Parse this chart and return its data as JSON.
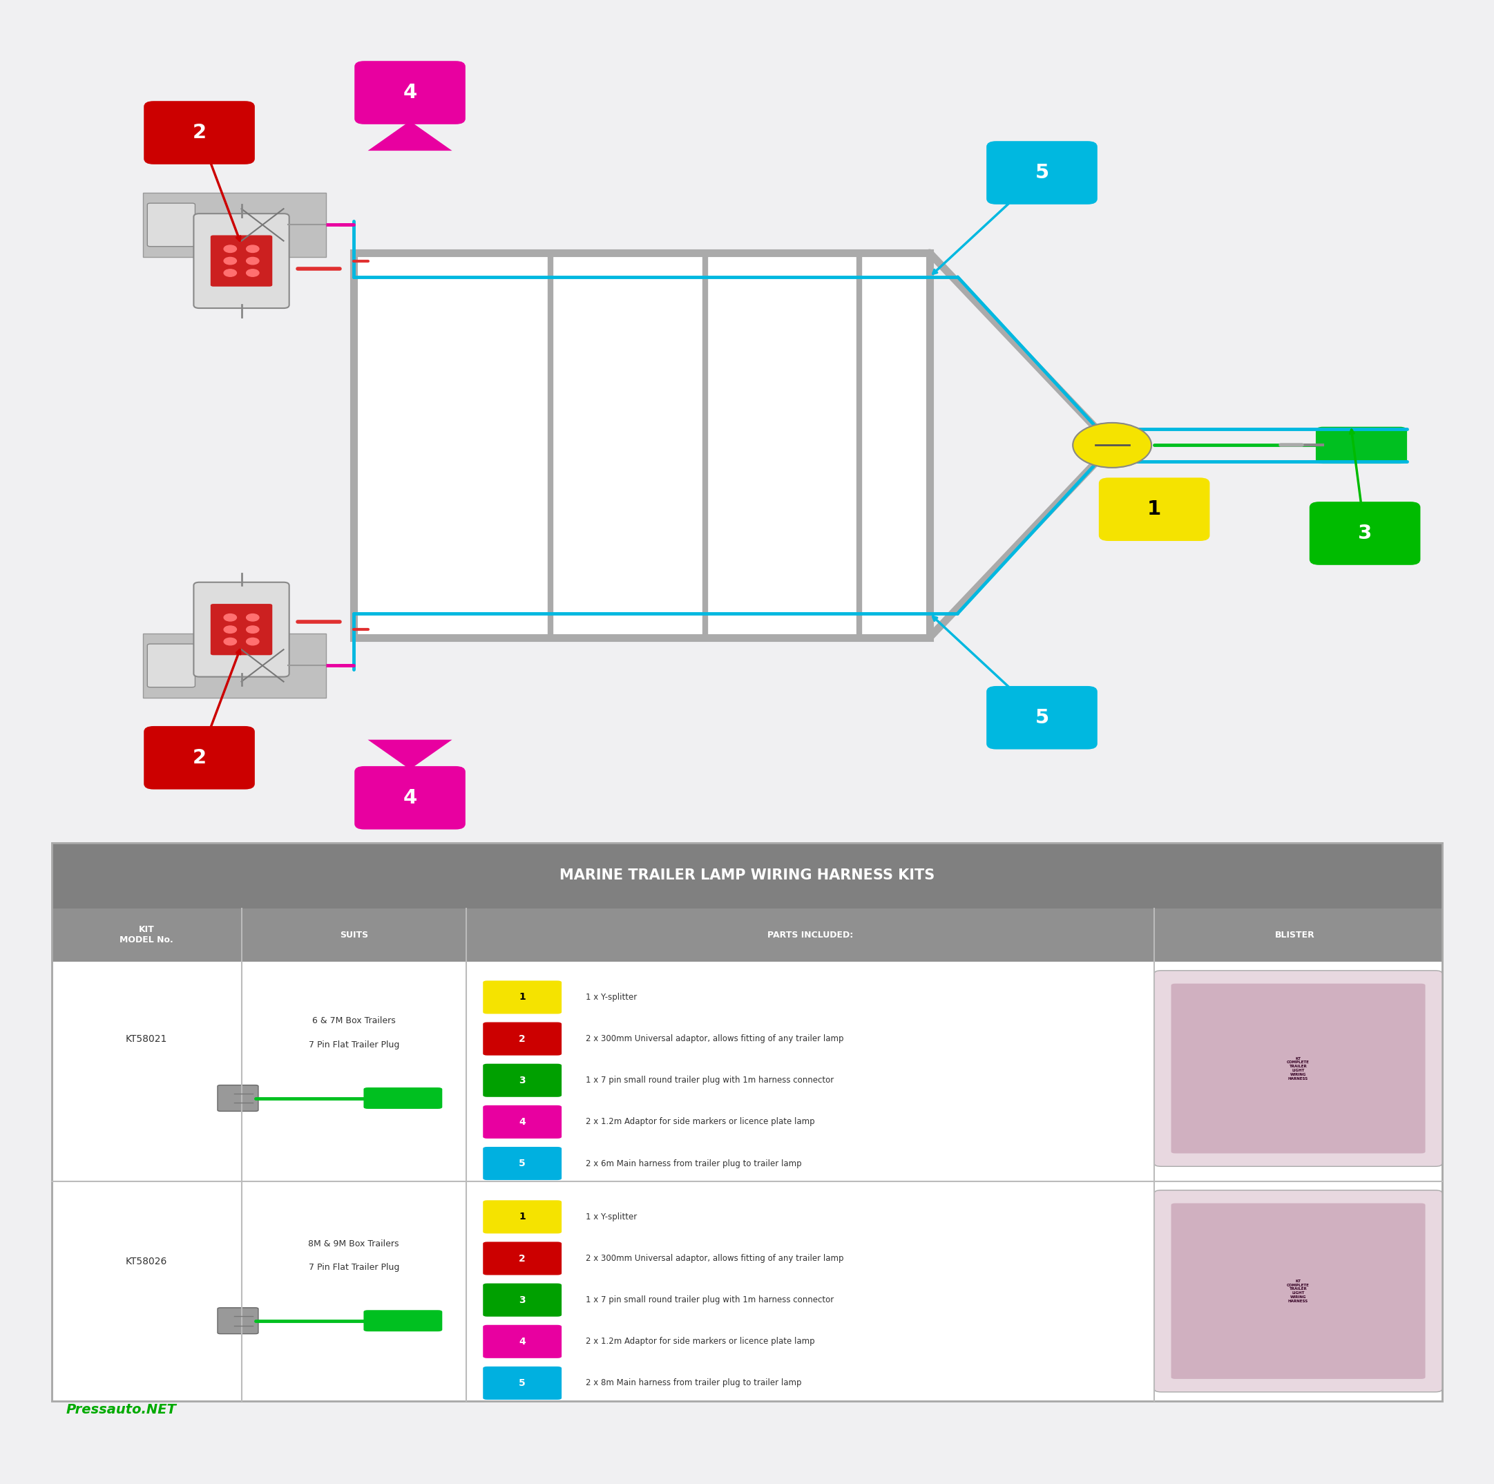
{
  "bg_color": "#f0f0f2",
  "wire_cyan": "#00b8e0",
  "wire_pink": "#e800a0",
  "wire_red": "#e03030",
  "wire_green": "#00c020",
  "trailer_color": "#aaaaaa",
  "y_splitter_color": "#f5e300",
  "title": "MARINE TRAILER LAMP WIRING HARNESS KITS",
  "footer_text": "Pressauto.NET",
  "footer_color": "#00aa00",
  "badges": {
    "1": {
      "bg": "#f5e300",
      "fg": "#000000"
    },
    "2": {
      "bg": "#cc0000",
      "fg": "#ffffff"
    },
    "3": {
      "bg": "#00bb00",
      "fg": "#ffffff"
    },
    "4": {
      "bg": "#e800a0",
      "fg": "#ffffff"
    },
    "5": {
      "bg": "#00b8e0",
      "fg": "#ffffff"
    }
  },
  "kits": [
    {
      "model": "KT58021",
      "suits_line1": "6 & 7M Box Trailers",
      "suits_line2": "7 Pin Flat Trailer Plug",
      "parts": [
        {
          "num": "1",
          "text": "1 x Y-splitter"
        },
        {
          "num": "2",
          "text": "2 x 300mm Universal adaptor, allows fitting of any trailer lamp"
        },
        {
          "num": "3",
          "text": "1 x 7 pin small round trailer plug with 1m harness connector"
        },
        {
          "num": "4",
          "text": "2 x 1.2m Adaptor for side markers or licence plate lamp"
        },
        {
          "num": "5",
          "text": "2 x 6m Main harness from trailer plug to trailer lamp"
        }
      ]
    },
    {
      "model": "KT58026",
      "suits_line1": "8M & 9M Box Trailers",
      "suits_line2": "7 Pin Flat Trailer Plug",
      "parts": [
        {
          "num": "1",
          "text": "1 x Y-splitter"
        },
        {
          "num": "2",
          "text": "2 x 300mm Universal adaptor, allows fitting of any trailer lamp"
        },
        {
          "num": "3",
          "text": "1 x 7 pin small round trailer plug with 1m harness connector"
        },
        {
          "num": "4",
          "text": "2 x 1.2m Adaptor for side markers or licence plate lamp"
        },
        {
          "num": "5",
          "text": "2 x 8m Main harness from trailer plug to trailer lamp"
        }
      ]
    }
  ],
  "badge_num_colors": {
    "1": [
      "#f5e300",
      "#000000"
    ],
    "2": [
      "#cc0000",
      "#ffffff"
    ],
    "3": [
      "#00a000",
      "#ffffff"
    ],
    "4": [
      "#e800a0",
      "#ffffff"
    ],
    "5": [
      "#00b0e0",
      "#ffffff"
    ]
  }
}
